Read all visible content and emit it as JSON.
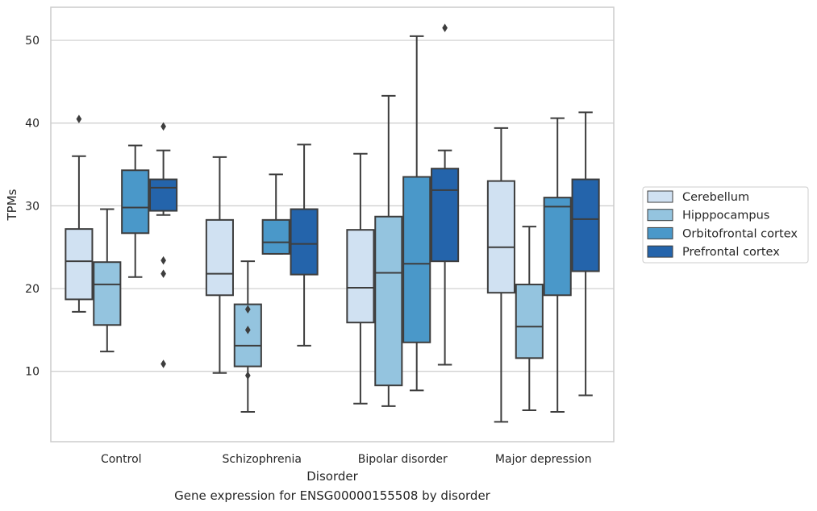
{
  "caption": "Gene expression for ENSG00000155508 by disorder",
  "chart_data": {
    "type": "box",
    "title": "",
    "xlabel": "Disorder",
    "ylabel": "TPMs",
    "ylim": [
      1.5,
      54
    ],
    "yticks": [
      10,
      20,
      30,
      40,
      50
    ],
    "grid": "horizontal",
    "legend_position": "right",
    "categories": [
      "Control",
      "Schizophrenia",
      "Bipolar disorder",
      "Major depression"
    ],
    "series": [
      {
        "name": "Cerebellum",
        "color": "#d0e1f2",
        "boxes": [
          {
            "whisker_low": 17.2,
            "q1": 18.7,
            "median": 23.3,
            "q3": 27.2,
            "whisker_high": 36.0,
            "outliers": [
              40.5
            ]
          },
          {
            "whisker_low": 9.8,
            "q1": 19.2,
            "median": 21.8,
            "q3": 28.3,
            "whisker_high": 35.9,
            "outliers": []
          },
          {
            "whisker_low": 6.1,
            "q1": 15.9,
            "median": 20.1,
            "q3": 27.1,
            "whisker_high": 36.3,
            "outliers": []
          },
          {
            "whisker_low": 3.9,
            "q1": 19.5,
            "median": 25.0,
            "q3": 33.0,
            "whisker_high": 39.4,
            "outliers": []
          }
        ]
      },
      {
        "name": "Hipppocampus",
        "color": "#94c4df",
        "boxes": [
          {
            "whisker_low": 12.4,
            "q1": 15.6,
            "median": 20.5,
            "q3": 23.2,
            "whisker_high": 29.6,
            "outliers": []
          },
          {
            "whisker_low": 5.1,
            "q1": 10.6,
            "median": 13.1,
            "q3": 18.1,
            "whisker_high": 23.3,
            "outliers": [
              17.5,
              15.0,
              9.5
            ]
          },
          {
            "whisker_low": 5.8,
            "q1": 8.3,
            "median": 21.9,
            "q3": 28.7,
            "whisker_high": 43.3,
            "outliers": []
          },
          {
            "whisker_low": 5.3,
            "q1": 11.6,
            "median": 15.4,
            "q3": 20.5,
            "whisker_high": 27.5,
            "outliers": []
          }
        ]
      },
      {
        "name": "Orbitofrontal cortex",
        "color": "#4a98c9",
        "boxes": [
          {
            "whisker_low": 21.4,
            "q1": 26.7,
            "median": 29.8,
            "q3": 34.3,
            "whisker_high": 37.3,
            "outliers": []
          },
          {
            "whisker_low": 24.2,
            "q1": 24.2,
            "median": 25.6,
            "q3": 28.3,
            "whisker_high": 33.8,
            "outliers": []
          },
          {
            "whisker_low": 7.7,
            "q1": 13.5,
            "median": 23.0,
            "q3": 33.5,
            "whisker_high": 50.5,
            "outliers": []
          },
          {
            "whisker_low": 5.1,
            "q1": 19.2,
            "median": 29.9,
            "q3": 31.0,
            "whisker_high": 40.6,
            "outliers": []
          }
        ]
      },
      {
        "name": "Prefrontal cortex",
        "color": "#2464ab",
        "boxes": [
          {
            "whisker_low": 28.9,
            "q1": 29.4,
            "median": 32.2,
            "q3": 33.2,
            "whisker_high": 36.7,
            "outliers": [
              39.6,
              23.4,
              21.8,
              10.9
            ]
          },
          {
            "whisker_low": 13.1,
            "q1": 21.7,
            "median": 25.4,
            "q3": 29.6,
            "whisker_high": 37.4,
            "outliers": []
          },
          {
            "whisker_low": 10.8,
            "q1": 23.3,
            "median": 31.9,
            "q3": 34.5,
            "whisker_high": 36.7,
            "outliers": [
              51.5
            ]
          },
          {
            "whisker_low": 7.1,
            "q1": 22.1,
            "median": 28.4,
            "q3": 33.2,
            "whisker_high": 41.3,
            "outliers": []
          }
        ]
      }
    ]
  }
}
